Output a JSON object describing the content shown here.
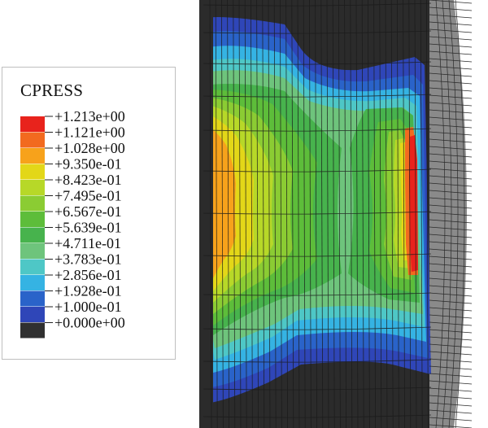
{
  "legend": {
    "title": "CPRESS",
    "entries": [
      {
        "label": "+1.213e+00",
        "color": "#e8231c"
      },
      {
        "label": "+1.121e+00",
        "color": "#f26a1f"
      },
      {
        "label": "+1.028e+00",
        "color": "#f7a21b"
      },
      {
        "label": "+9.350e-01",
        "color": "#e3d718"
      },
      {
        "label": "+8.423e-01",
        "color": "#b7d828"
      },
      {
        "label": "+7.495e-01",
        "color": "#8bcc33"
      },
      {
        "label": "+6.567e-01",
        "color": "#5dbd3a"
      },
      {
        "label": "+5.639e-01",
        "color": "#47b34d"
      },
      {
        "label": "+4.711e-01",
        "color": "#6ec47c"
      },
      {
        "label": "+3.783e-01",
        "color": "#4ec7c6"
      },
      {
        "label": "+2.856e-01",
        "color": "#35b3e3"
      },
      {
        "label": "+1.928e-01",
        "color": "#2a63c9"
      },
      {
        "label": "+1.000e-01",
        "color": "#2f46b8"
      },
      {
        "label": "+0.000e+00",
        "color": "#303030"
      }
    ]
  },
  "colors": {
    "background": "#ffffff",
    "mesh_line": "#1a1a1a",
    "outer_part": "#2b2b2b",
    "rim_part": "#8a8a8a"
  }
}
